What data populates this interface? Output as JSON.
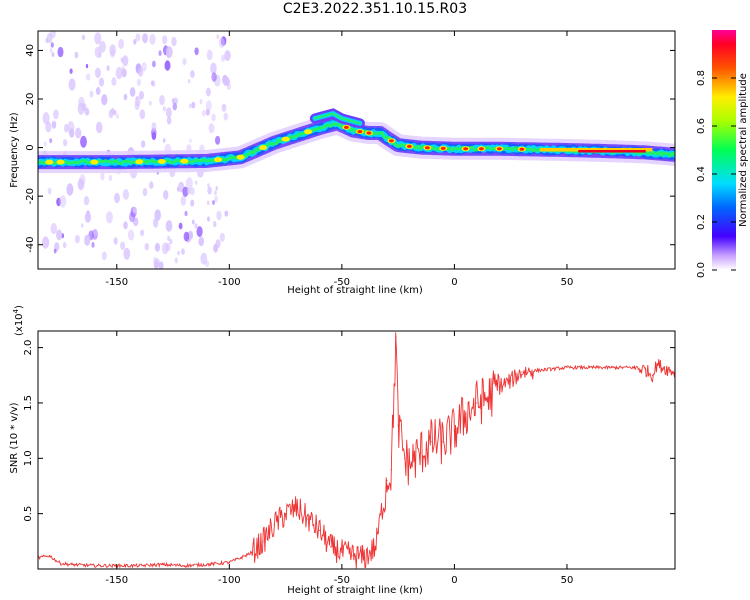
{
  "title": "C2E3.2022.351.10.15.R03",
  "chart_data": [
    {
      "type": "heatmap",
      "xlabel": "Height of straight line (km)",
      "ylabel": "Frequency (Hz)",
      "xlim": [
        -185,
        98
      ],
      "ylim": [
        -50,
        48
      ],
      "xticks": [
        -150,
        -100,
        -50,
        0,
        50
      ],
      "yticks": [
        -40,
        -20,
        0,
        20,
        40
      ],
      "ridge": {
        "x": [
          -185,
          -150,
          -110,
          -95,
          -80,
          -70,
          -60,
          -52,
          -45,
          -38,
          -33,
          -30,
          -25,
          -15,
          0,
          20,
          50,
          70,
          85,
          98
        ],
        "y": [
          -6,
          -6,
          -5.5,
          -4,
          2,
          5,
          8,
          10,
          7,
          6,
          6,
          4,
          1,
          0,
          -0.5,
          -0.5,
          -1,
          -1.5,
          -2,
          -3
        ]
      },
      "colorbar": {
        "label": "Normalized spectral amplitude",
        "ticks": [
          0.0,
          0.2,
          0.4,
          0.6,
          0.8
        ],
        "range": [
          0,
          1
        ]
      }
    },
    {
      "type": "line",
      "xlabel": "Height of straight line (km)",
      "ylabel": "SNR (10 * v/v)",
      "yunit": "(x10^4)",
      "xlim": [
        -185,
        98
      ],
      "ylim": [
        0,
        2.15
      ],
      "xticks": [
        -150,
        -100,
        -50,
        0,
        50
      ],
      "yticks": [
        0.5,
        1.0,
        1.5,
        2.0
      ],
      "color": "#ee3333",
      "series": [
        {
          "x": [
            -185,
            -180,
            -175,
            -170,
            -160,
            -150,
            -140,
            -130,
            -120,
            -110,
            -100,
            -95,
            -90,
            -85,
            -80,
            -75,
            -70,
            -65,
            -60,
            -55,
            -50,
            -45,
            -40,
            -35,
            -30,
            -28,
            -26,
            -25,
            -22,
            -20,
            -15,
            -10,
            -5,
            0,
            5,
            10,
            15,
            20,
            25,
            30,
            40,
            50,
            60,
            70,
            80,
            85,
            88,
            90,
            95,
            98
          ],
          "y": [
            0.1,
            0.12,
            0.05,
            0.04,
            0.03,
            0.03,
            0.03,
            0.04,
            0.03,
            0.04,
            0.06,
            0.1,
            0.15,
            0.25,
            0.4,
            0.5,
            0.55,
            0.45,
            0.35,
            0.2,
            0.15,
            0.12,
            0.1,
            0.2,
            0.8,
            0.9,
            2.1,
            1.3,
            1.0,
            0.95,
            1.05,
            1.15,
            1.15,
            1.25,
            1.4,
            1.5,
            1.55,
            1.65,
            1.7,
            1.78,
            1.8,
            1.82,
            1.82,
            1.82,
            1.82,
            1.8,
            1.75,
            1.85,
            1.8,
            1.78
          ]
        }
      ]
    }
  ]
}
